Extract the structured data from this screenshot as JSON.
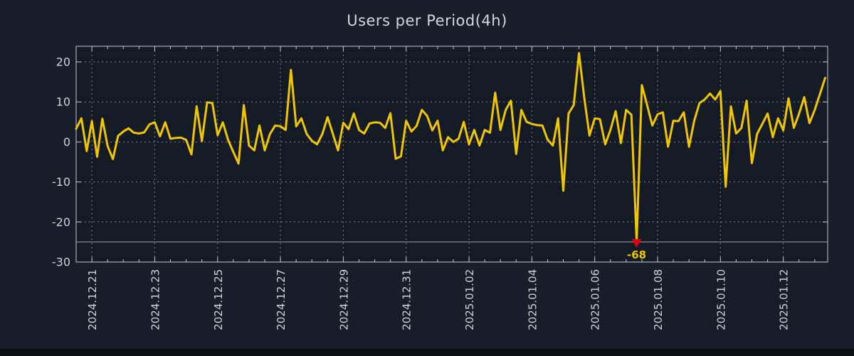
{
  "title": "Users per Period(4h)",
  "chart_data": {
    "type": "line",
    "title": "Users per Period(4h)",
    "series": [
      {
        "name": "users",
        "color": "#f0c600",
        "values": [
          3.3,
          5.9,
          -2.3,
          5.2,
          -3.7,
          5.8,
          -1.0,
          -4.3,
          1.5,
          2.6,
          3.4,
          2.3,
          2.1,
          2.4,
          4.4,
          4.9,
          1.4,
          4.9,
          0.8,
          1.0,
          1.1,
          0.5,
          -3.1,
          8.9,
          0.2,
          9.9,
          9.7,
          1.7,
          4.9,
          0.5,
          -2.5,
          -5.4,
          9.2,
          -0.9,
          -2.1,
          4.1,
          -2.1,
          2.0,
          4.1,
          3.9,
          3.0,
          18.0,
          3.9,
          5.9,
          2.0,
          0.3,
          -0.6,
          2.0,
          6.2,
          2.0,
          -2.1,
          4.8,
          3.2,
          7.1,
          3.0,
          2.1,
          4.6,
          4.9,
          4.8,
          3.5,
          7.2,
          -4.2,
          -3.6,
          5.3,
          2.6,
          4.0,
          8.0,
          6.5,
          2.9,
          5.3,
          -2.1,
          1.2,
          0.0,
          0.8,
          5.0,
          -0.6,
          3.0,
          -0.9,
          3.0,
          2.3,
          12.3,
          3.0,
          8.0,
          10.3,
          -3.0,
          8.0,
          5.0,
          4.5,
          4.2,
          4.1,
          0.6,
          -0.9,
          5.9,
          -12.2,
          7.1,
          9.2,
          22.2,
          11.0,
          1.6,
          5.9,
          5.7,
          -0.6,
          3.0,
          7.7,
          -0.3,
          8.0,
          6.8,
          -68.0,
          14.2,
          9.2,
          4.1,
          6.9,
          7.4,
          -1.2,
          5.3,
          5.2,
          7.4,
          -1.2,
          5.3,
          9.7,
          10.6,
          12.1,
          10.6,
          12.7,
          -11.2,
          8.9,
          2.1,
          3.5,
          10.3,
          -5.3,
          2.0,
          4.5,
          7.1,
          1.2,
          5.9,
          2.9,
          10.9,
          3.5,
          7.0,
          11.2,
          4.7,
          8.0,
          12.0,
          16.0
        ]
      }
    ],
    "x_tick_labels": [
      "2024.12.21",
      "2024.12.23",
      "2024.12.25",
      "2024.12.27",
      "2024.12.29",
      "2024.12.31",
      "2025.01.02",
      "2025.01.04",
      "2025.01.06",
      "2025.01.08",
      "2025.01.10",
      "2025.01.12"
    ],
    "x_tick_label_indices": [
      3,
      15,
      27,
      39,
      51,
      63,
      75,
      87,
      99,
      111,
      123,
      135
    ],
    "x_minor_tick_every": 3,
    "y_ticks": [
      20,
      10,
      0,
      -10,
      -20,
      -30
    ],
    "ylim": [
      -30,
      23.9
    ],
    "grid": true,
    "legend": false,
    "clip_line_value": -25,
    "annotations": [
      {
        "index": 107,
        "text": "-68",
        "value": -68,
        "marker": "triangle-down",
        "marker_color": "#e1000a",
        "text_color": "#f0c600"
      }
    ]
  },
  "colors": {
    "background": "#171e29",
    "plot_background": "#141b25",
    "axis": "#c2c8ce",
    "grid": "#8e99a4",
    "tick_text": "#cdd2d7",
    "title_text": "#d4d7da",
    "footer_strip": "#0c1118"
  }
}
